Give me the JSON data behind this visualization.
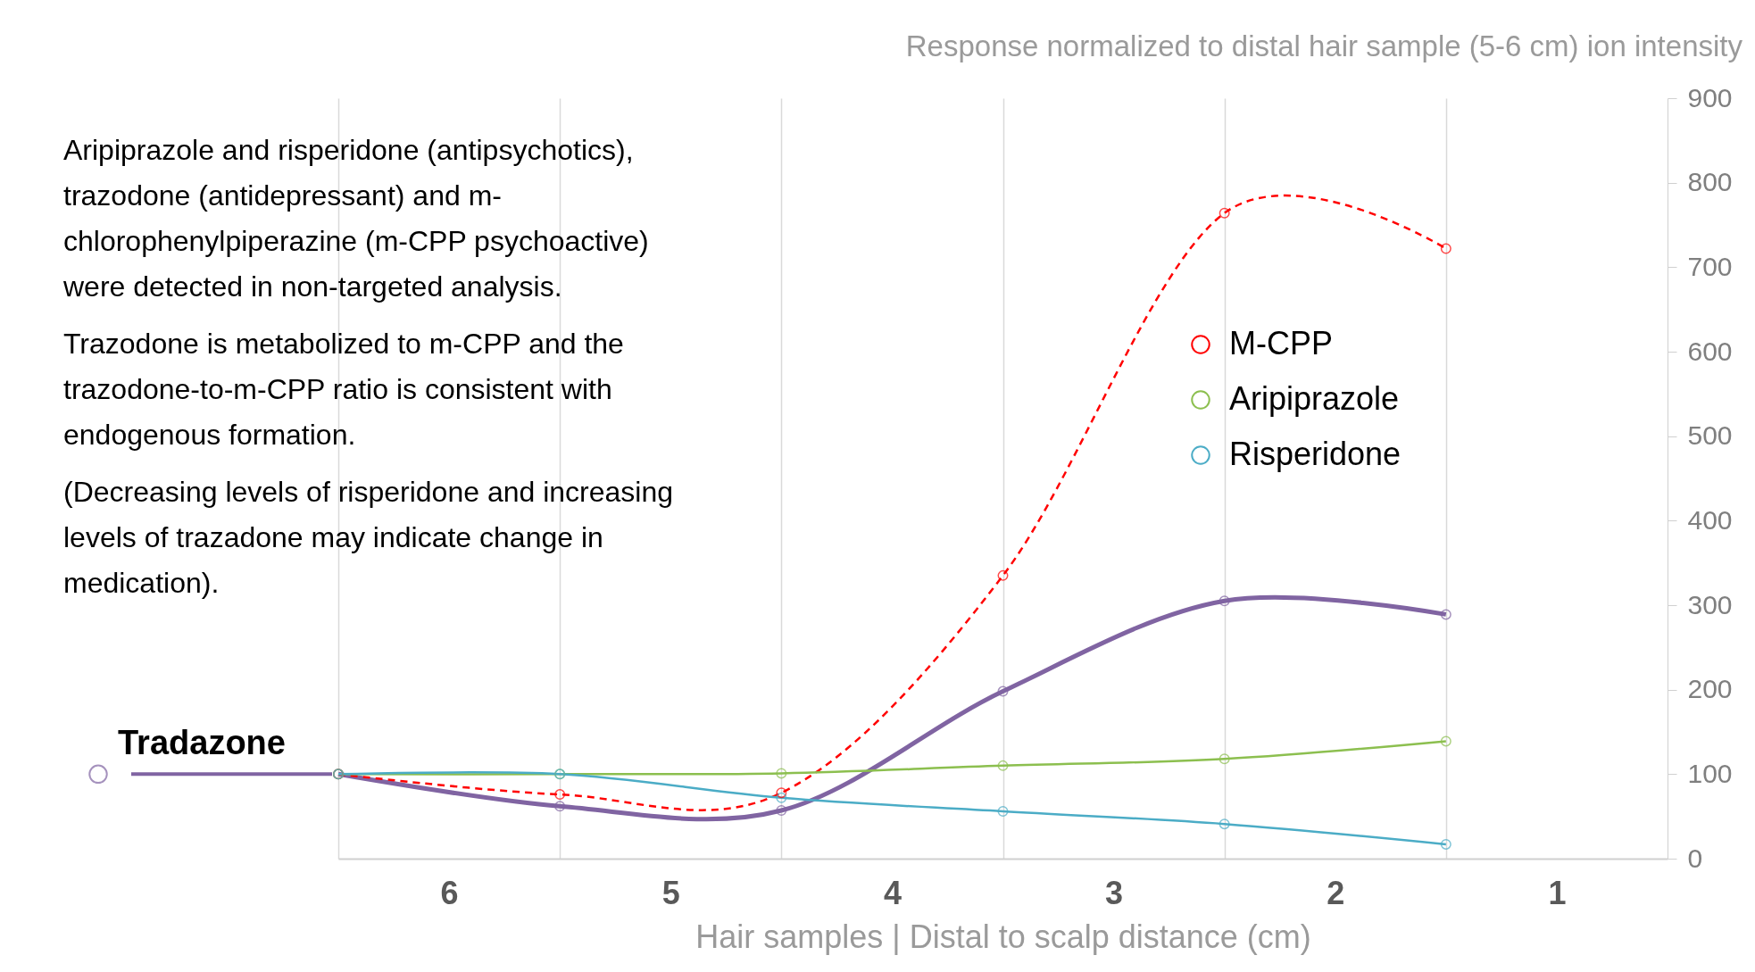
{
  "chart_data": {
    "type": "line",
    "ylabel": "Response normalized to distal hair sample (5-6 cm) ion intensity",
    "xlabel": "Hair samples | Distal to scalp distance (cm)",
    "annotations": [
      "Aripiprazole and risperidone (antipsychotics),\ntrazodone (antidepressant) and m-\nchlorophenylpiperazine (m-CPP psychoactive)\nwere detected in non-targeted analysis.",
      "Trazodone is metabolized to m-CPP and the\ntrazodone-to-m-CPP ratio is consistent with\nendogenous formation.",
      "(Decreasing levels of risperidone and increasing\nlevels of trazadone may indicate change in\nmedication)."
    ],
    "x": [
      6.5,
      5.5,
      4.5,
      3.5,
      2.5,
      1.5
    ],
    "series": [
      {
        "name": "Tradazone",
        "color": "#8064a2",
        "values": [
          100,
          62,
          57,
          198,
          305,
          289
        ]
      },
      {
        "name": "M-CPP",
        "color": "#ff0000",
        "line_style": "dashed",
        "values": [
          100,
          76,
          78,
          335,
          764,
          722
        ]
      },
      {
        "name": "Aripiprazole",
        "color": "#8cbf4f",
        "values": [
          100,
          100,
          101,
          110,
          118,
          139
        ]
      },
      {
        "name": "Risperidone",
        "color": "#4bacc6",
        "values": [
          100,
          100,
          72,
          56,
          41,
          17
        ]
      }
    ],
    "xlim": [
      6.5,
      0.5
    ],
    "xticks": [
      {
        "value": 6.5,
        "label": null
      },
      6,
      {
        "value": 5.5,
        "label": null
      },
      5,
      {
        "value": 4.5,
        "label": null
      },
      4,
      {
        "value": 3.5,
        "label": null
      },
      3,
      {
        "value": 2.5,
        "label": null
      },
      2,
      {
        "value": 1.5,
        "label": null
      },
      1
    ],
    "ylim": [
      0,
      900
    ],
    "yticks": [
      0,
      100,
      200,
      300,
      400,
      500,
      600,
      700,
      800,
      900
    ],
    "grid": "x",
    "legend": "right",
    "marker": "circle"
  }
}
